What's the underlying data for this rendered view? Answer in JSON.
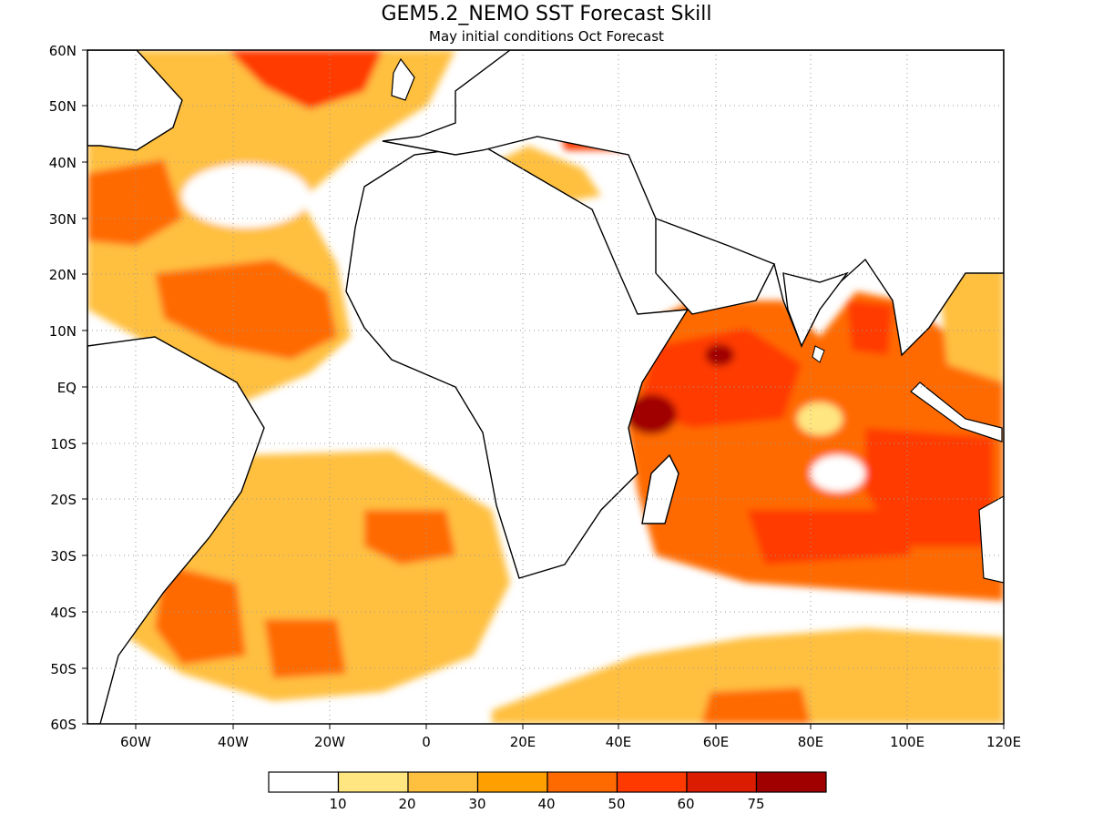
{
  "title": "GEM5.2_NEMO SST Forecast Skill",
  "subtitle": "May initial conditions  Oct Forecast",
  "y_ticks": [
    "60N",
    "50N",
    "40N",
    "30N",
    "20N",
    "10N",
    "EQ",
    "10S",
    "20S",
    "30S",
    "40S",
    "50S",
    "60S"
  ],
  "x_ticks": [
    "60W",
    "40W",
    "20W",
    "0",
    "20E",
    "40E",
    "60E",
    "80E",
    "100E",
    "120E"
  ],
  "legend": {
    "colors": [
      "#ffffff",
      "#ffe680",
      "#ffc040",
      "#ffa000",
      "#ff6a00",
      "#ff3a00",
      "#dc1c00",
      "#a00000"
    ],
    "labels": [
      "10",
      "20",
      "30",
      "40",
      "50",
      "60",
      "75"
    ]
  }
}
